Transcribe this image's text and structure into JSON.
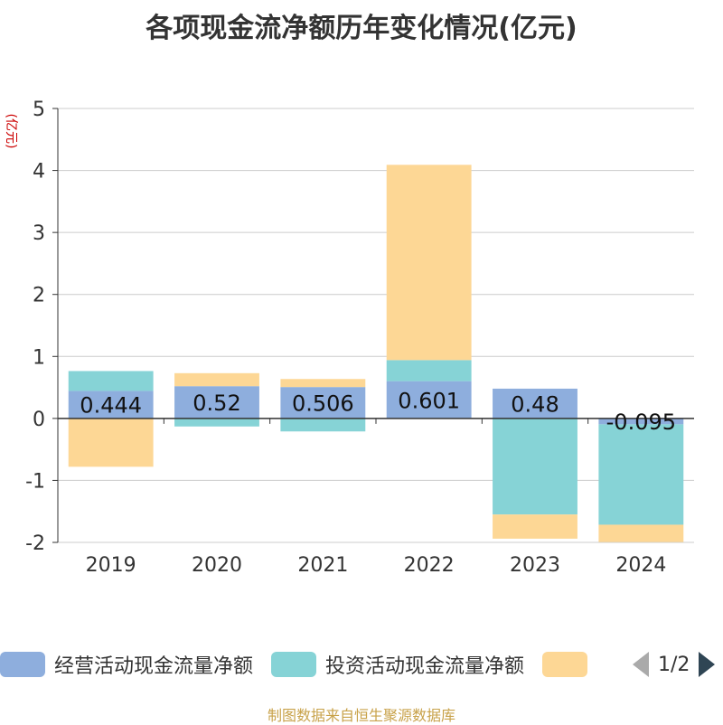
{
  "title": "各项现金流净额历年变化情况(亿元)",
  "source": "制图数据来自恒生聚源数据库",
  "pager": {
    "text": "1/2"
  },
  "colors": {
    "operating": "#8eaedd",
    "investing": "#86d3d6",
    "financing": "#fdd795",
    "grid": "#cccccc",
    "axis": "#333333",
    "unit": "#cc0000"
  },
  "chart_data": {
    "type": "bar",
    "stacked": true,
    "categories": [
      "2019",
      "2020",
      "2021",
      "2022",
      "2023",
      "2024"
    ],
    "yunit": "(亿元)",
    "ylim": [
      -2,
      5
    ],
    "yticks": [
      -2,
      -1,
      0,
      1,
      2,
      3,
      4,
      5
    ],
    "grid": true,
    "legend_position": "bottom",
    "series": [
      {
        "name": "经营活动现金流量净额",
        "values": [
          0.444,
          0.52,
          0.506,
          0.601,
          0.48,
          -0.095
        ],
        "labels": [
          "0.444",
          "0.52",
          "0.506",
          "0.601",
          "0.48",
          "-0.095"
        ]
      },
      {
        "name": "投资活动现金流量净额",
        "values": [
          0.32,
          -0.13,
          -0.21,
          0.34,
          -1.55,
          -1.62
        ]
      },
      {
        "name": "",
        "values": [
          -0.78,
          0.21,
          0.13,
          3.15,
          -0.39,
          -0.28
        ]
      }
    ]
  }
}
